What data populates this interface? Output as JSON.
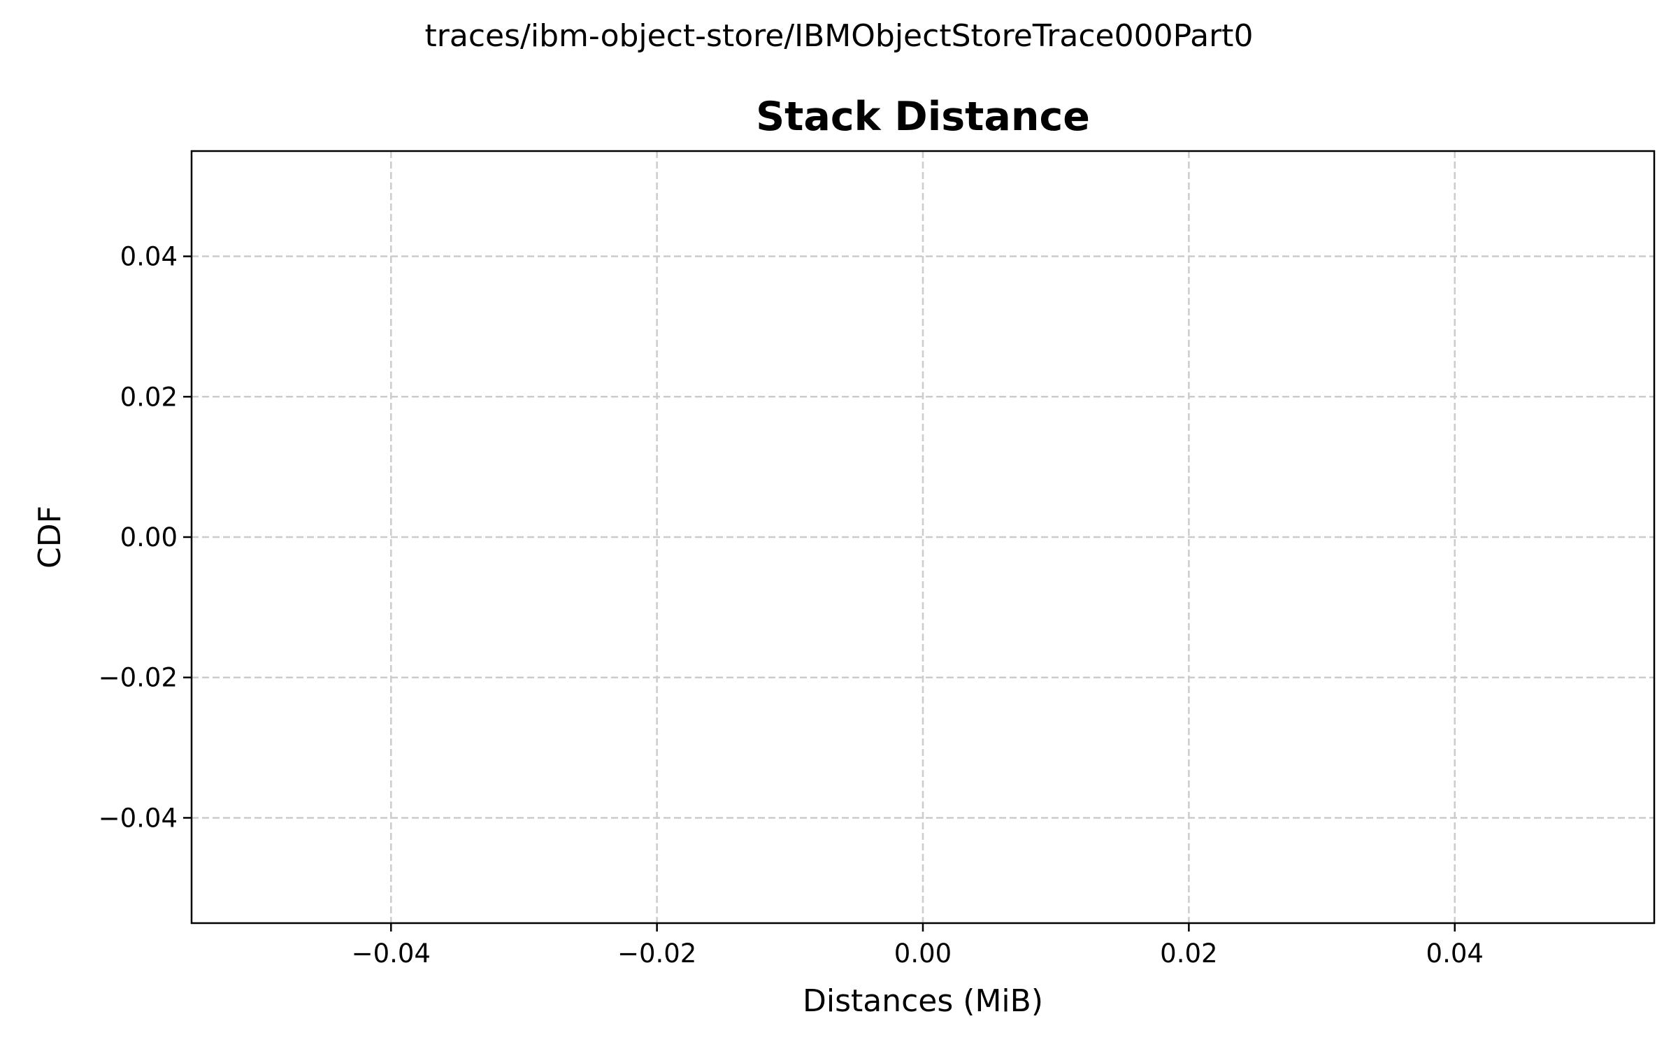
{
  "figure": {
    "suptitle": "traces/ibm-object-store/IBMObjectStoreTrace000Part0"
  },
  "chart_data": {
    "type": "line",
    "title": "Stack Distance",
    "xlabel": "Distances (MiB)",
    "ylabel": "CDF",
    "xlim": [
      -0.055,
      0.055
    ],
    "ylim": [
      -0.055,
      0.055
    ],
    "x_ticks": [
      -0.04,
      -0.02,
      0.0,
      0.02,
      0.04
    ],
    "x_tick_labels": [
      "−0.04",
      "−0.02",
      "0.00",
      "0.02",
      "0.04"
    ],
    "y_ticks": [
      -0.04,
      -0.02,
      0.0,
      0.02,
      0.04
    ],
    "y_tick_labels": [
      "−0.04",
      "−0.02",
      "0.00",
      "0.02",
      "0.04"
    ],
    "grid": true,
    "grid_style": "dashed",
    "grid_color": "#cccccc",
    "series": []
  }
}
